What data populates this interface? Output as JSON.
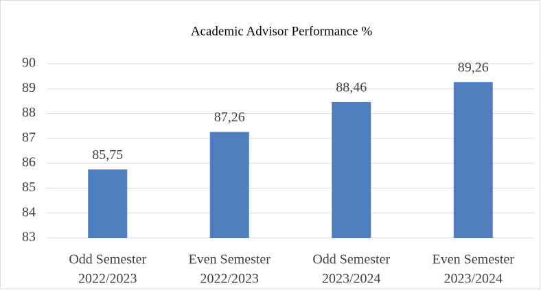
{
  "chart_data": {
    "type": "bar",
    "title": "Academic Advisor Performance %",
    "categories": [
      [
        "Odd Semester",
        "2022/2023"
      ],
      [
        "Even Semester",
        "2022/2023"
      ],
      [
        "Odd Semester",
        "2023/2024"
      ],
      [
        "Even Semester",
        "2023/2024"
      ]
    ],
    "values": [
      85.75,
      87.26,
      88.46,
      89.26
    ],
    "value_labels": [
      "85,75",
      "87,26",
      "88,46",
      "89,26"
    ],
    "color": "#4f7fbf",
    "ylim": [
      83,
      90
    ],
    "yticks": [
      83,
      84,
      85,
      86,
      87,
      88,
      89,
      90
    ],
    "grid": true
  }
}
